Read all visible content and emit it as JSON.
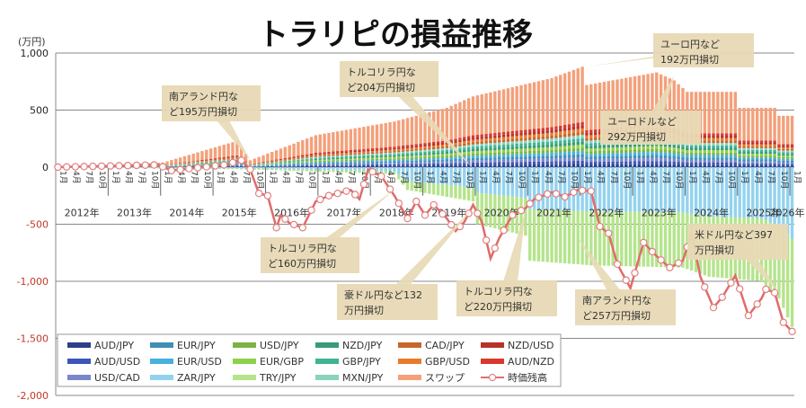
{
  "chart_data": {
    "type": "bar",
    "title": "トラリピの損益推移",
    "ylabel": "(万円)",
    "xlabel": "",
    "ylim": [
      -2000,
      1000
    ],
    "yticks": [
      1000,
      500,
      0,
      -500,
      -1000,
      -1500,
      -2000
    ],
    "ytick_labels": [
      "1,000",
      "500",
      "0",
      "-500",
      "-1,000",
      "-1,500",
      "-2,000"
    ],
    "grid": true,
    "legend_position": "bottom",
    "years": [
      "2012年",
      "2013年",
      "2014年",
      "2015年",
      "2016年",
      "2017年",
      "2018年",
      "2019年",
      "2020年",
      "2021年",
      "2022年",
      "2023年",
      "2024年",
      "2025年",
      "2026年"
    ],
    "month_labels": [
      "1月",
      "4月",
      "7月",
      "10月"
    ],
    "start": "2012-01",
    "end": "2026-01",
    "positive_series": [
      "AUD/JPY",
      "AUD/USD",
      "USD/CAD",
      "EUR/JPY",
      "EUR/USD",
      "USD/JPY",
      "EUR/GBP",
      "NZD/JPY",
      "GBP/JPY",
      "MXN/JPY",
      "CAD/JPY",
      "GBP/USD",
      "NZD/USD",
      "AUD/NZD",
      "スワップ"
    ],
    "legend": [
      {
        "name": "AUD/JPY",
        "color": "#2e3f8a",
        "kind": "bar"
      },
      {
        "name": "EUR/JPY",
        "color": "#3f8fb5",
        "kind": "bar"
      },
      {
        "name": "USD/JPY",
        "color": "#7cb342",
        "kind": "bar"
      },
      {
        "name": "NZD/JPY",
        "color": "#3a9a7a",
        "kind": "bar"
      },
      {
        "name": "CAD/JPY",
        "color": "#c8652a",
        "kind": "bar"
      },
      {
        "name": "NZD/USD",
        "color": "#b8322a",
        "kind": "bar"
      },
      {
        "name": "AUD/USD",
        "color": "#3b56b8",
        "kind": "bar"
      },
      {
        "name": "EUR/USD",
        "color": "#47b0de",
        "kind": "bar"
      },
      {
        "name": "EUR/GBP",
        "color": "#8ed14a",
        "kind": "bar"
      },
      {
        "name": "GBP/JPY",
        "color": "#3fb592",
        "kind": "bar"
      },
      {
        "name": "GBP/USD",
        "color": "#ea7a2a",
        "kind": "bar"
      },
      {
        "name": "AUD/NZD",
        "color": "#d9382e",
        "kind": "bar"
      },
      {
        "name": "USD/CAD",
        "color": "#7a86cc",
        "kind": "bar"
      },
      {
        "name": "ZAR/JPY",
        "color": "#93d2ef",
        "kind": "bar"
      },
      {
        "name": "TRY/JPY",
        "color": "#b5e48c",
        "kind": "bar"
      },
      {
        "name": "MXN/JPY",
        "color": "#8ad3bd",
        "kind": "bar"
      },
      {
        "name": "スワップ",
        "color": "#f4a07a",
        "kind": "bar"
      },
      {
        "name": "時価残高",
        "color": "#e07070",
        "kind": "line"
      }
    ],
    "swap_total_keypoints": [
      {
        "t": "2012-01",
        "v": 0
      },
      {
        "t": "2014-01",
        "v": 40
      },
      {
        "t": "2015-06",
        "v": 230
      },
      {
        "t": "2015-09",
        "v": 60
      },
      {
        "t": "2016-12",
        "v": 280
      },
      {
        "t": "2018-06",
        "v": 400
      },
      {
        "t": "2019-06",
        "v": 520
      },
      {
        "t": "2019-12",
        "v": 620
      },
      {
        "t": "2021-06",
        "v": 780
      },
      {
        "t": "2022-01",
        "v": 880
      },
      {
        "t": "2022-02",
        "v": 720
      },
      {
        "t": "2023-06",
        "v": 830
      },
      {
        "t": "2023-10",
        "v": 760
      },
      {
        "t": "2024-01",
        "v": 660
      },
      {
        "t": "2024-12",
        "v": 660
      },
      {
        "t": "2025-01",
        "v": 520
      },
      {
        "t": "2025-09",
        "v": 520
      },
      {
        "t": "2025-10",
        "v": 450
      },
      {
        "t": "2026-01",
        "v": 450
      }
    ],
    "negative_keypoints": [
      {
        "t": "2012-01",
        "v": 0
      },
      {
        "t": "2015-09",
        "v": -20
      },
      {
        "t": "2018-06",
        "v": -60
      },
      {
        "t": "2018-09",
        "v": -200
      },
      {
        "t": "2019-12",
        "v": -300
      },
      {
        "t": "2020-01",
        "v": -500
      },
      {
        "t": "2020-12",
        "v": -600
      },
      {
        "t": "2021-01",
        "v": -820
      },
      {
        "t": "2022-03",
        "v": -860
      },
      {
        "t": "2023-12",
        "v": -880
      },
      {
        "t": "2024-06",
        "v": -960
      },
      {
        "t": "2025-06",
        "v": -1000
      },
      {
        "t": "2025-10",
        "v": -1150
      },
      {
        "t": "2026-01",
        "v": -1400
      }
    ],
    "valuation_line": {
      "name": "時価残高",
      "points": [
        {
          "t": "2012-01",
          "v": 0
        },
        {
          "t": "2013-12",
          "v": 20
        },
        {
          "t": "2014-03",
          "v": -30
        },
        {
          "t": "2015-03",
          "v": 20
        },
        {
          "t": "2015-07",
          "v": 60
        },
        {
          "t": "2015-09",
          "v": -20
        },
        {
          "t": "2015-11",
          "v": -230
        },
        {
          "t": "2016-01",
          "v": -250
        },
        {
          "t": "2016-03",
          "v": -530
        },
        {
          "t": "2016-04",
          "v": -420
        },
        {
          "t": "2016-06",
          "v": -490
        },
        {
          "t": "2016-09",
          "v": -530
        },
        {
          "t": "2016-12",
          "v": -300
        },
        {
          "t": "2017-03",
          "v": -250
        },
        {
          "t": "2017-08",
          "v": -200
        },
        {
          "t": "2017-10",
          "v": -280
        },
        {
          "t": "2017-12",
          "v": -20
        },
        {
          "t": "2018-03",
          "v": -80
        },
        {
          "t": "2018-06",
          "v": -250
        },
        {
          "t": "2018-09",
          "v": -450
        },
        {
          "t": "2018-11",
          "v": -300
        },
        {
          "t": "2019-01",
          "v": -420
        },
        {
          "t": "2019-03",
          "v": -330
        },
        {
          "t": "2019-06",
          "v": -450
        },
        {
          "t": "2019-08",
          "v": -560
        },
        {
          "t": "2019-10",
          "v": -480
        },
        {
          "t": "2019-12",
          "v": -330
        },
        {
          "t": "2020-02",
          "v": -480
        },
        {
          "t": "2020-04",
          "v": -800
        },
        {
          "t": "2020-06",
          "v": -620
        },
        {
          "t": "2020-09",
          "v": -420
        },
        {
          "t": "2020-12",
          "v": -360
        },
        {
          "t": "2021-02",
          "v": -280
        },
        {
          "t": "2021-06",
          "v": -220
        },
        {
          "t": "2021-09",
          "v": -260
        },
        {
          "t": "2021-12",
          "v": -200
        },
        {
          "t": "2022-03",
          "v": -210
        },
        {
          "t": "2022-05",
          "v": -520
        },
        {
          "t": "2022-07",
          "v": -580
        },
        {
          "t": "2022-09",
          "v": -850
        },
        {
          "t": "2022-12",
          "v": -1060
        },
        {
          "t": "2023-03",
          "v": -660
        },
        {
          "t": "2023-06",
          "v": -780
        },
        {
          "t": "2023-09",
          "v": -880
        },
        {
          "t": "2023-12",
          "v": -820
        },
        {
          "t": "2024-02",
          "v": -580
        },
        {
          "t": "2024-04",
          "v": -960
        },
        {
          "t": "2024-07",
          "v": -1230
        },
        {
          "t": "2024-09",
          "v": -1140
        },
        {
          "t": "2024-12",
          "v": -950
        },
        {
          "t": "2025-03",
          "v": -1300
        },
        {
          "t": "2025-06",
          "v": -1150
        },
        {
          "t": "2025-07",
          "v": -1070
        },
        {
          "t": "2025-09",
          "v": -1100
        },
        {
          "t": "2025-11",
          "v": -1360
        },
        {
          "t": "2026-01",
          "v": -1440
        }
      ]
    },
    "annotations": [
      {
        "lines": [
          "南アランド円な",
          "ど195万円損切"
        ],
        "at": "2015-09",
        "value": 60
      },
      {
        "lines": [
          "トルコリラ円な",
          "ど204万円損切"
        ],
        "at": "2019-12",
        "value": -10
      },
      {
        "lines": [
          "ユーロ円など",
          "192万円損切"
        ],
        "at": "2022-02",
        "value": 880
      },
      {
        "lines": [
          "ユーロドルなど",
          "292万円損切"
        ],
        "at": "2023-10",
        "value": 800
      },
      {
        "lines": [
          "トルコリラ円な",
          "ど160万円損切"
        ],
        "at": "2018-06",
        "value": -200
      },
      {
        "lines": [
          "豪ドル円など132",
          "万円損切"
        ],
        "at": "2019-12",
        "value": -360
      },
      {
        "lines": [
          "トルコリラ円な",
          "ど220万円損切"
        ],
        "at": "2020-12",
        "value": -380
      },
      {
        "lines": [
          "南アランド円な",
          "ど257万円損切"
        ],
        "at": "2021-12",
        "value": -620
      },
      {
        "lines": [
          "米ドル円など397",
          "万円損切"
        ],
        "at": "2025-10",
        "value": -1100
      }
    ]
  }
}
